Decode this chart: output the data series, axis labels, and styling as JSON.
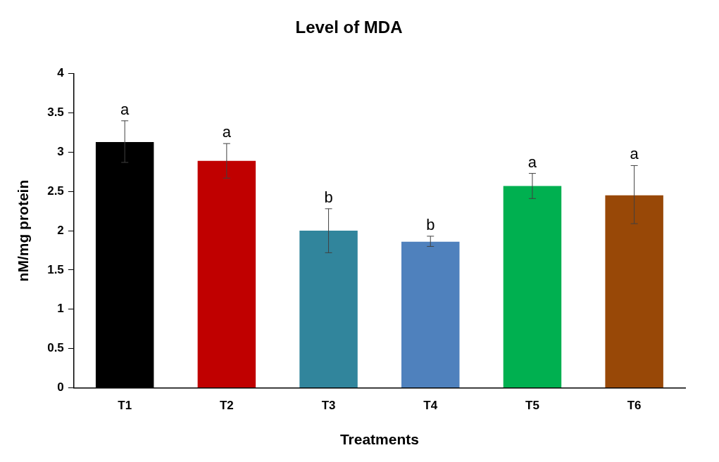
{
  "chart_data": {
    "type": "bar",
    "title": "Level of MDA",
    "xlabel": "Treatments",
    "ylabel": "nM/mg protein",
    "categories": [
      "T1",
      "T2",
      "T3",
      "T4",
      "T5",
      "T6"
    ],
    "values": [
      3.13,
      2.89,
      2.0,
      1.86,
      2.57,
      2.45
    ],
    "colors": [
      "#000000",
      "#c00000",
      "#31859c",
      "#4f81bd",
      "#00b050",
      "#984807"
    ],
    "errors": [
      [
        2.87,
        3.4
      ],
      [
        2.67,
        3.11
      ],
      [
        1.72,
        2.28
      ],
      [
        1.8,
        1.93
      ],
      [
        2.41,
        2.73
      ],
      [
        2.09,
        2.83
      ]
    ],
    "ylim": [
      0,
      4
    ],
    "yticks": [
      0,
      0.5,
      1,
      1.5,
      2,
      2.5,
      3,
      3.5,
      4
    ],
    "grid": false,
    "legend": false,
    "annotations": [
      {
        "text": "a",
        "x": "T1",
        "y": 3.4
      },
      {
        "text": "a",
        "x": "T2",
        "y": 3.11
      },
      {
        "text": "b",
        "x": "T3",
        "y": 2.28
      },
      {
        "text": "b",
        "x": "T4",
        "y": 1.93
      },
      {
        "text": "a",
        "x": "T5",
        "y": 2.73
      },
      {
        "text": "a",
        "x": "T6",
        "y": 2.83
      }
    ]
  }
}
